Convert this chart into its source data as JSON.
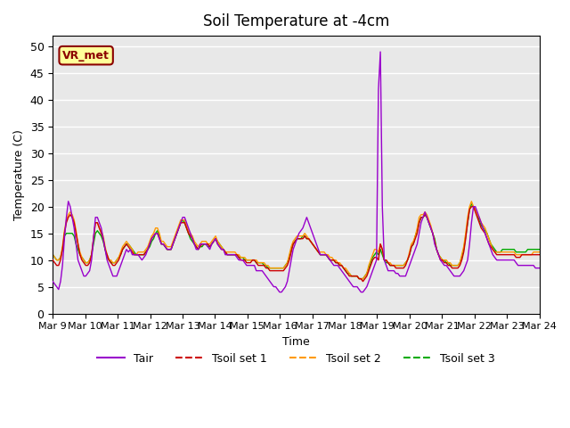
{
  "title": "Soil Temperature at -4cm",
  "xlabel": "Time",
  "ylabel": "Temperature (C)",
  "ylim": [
    0,
    52
  ],
  "xlim_days": [
    0,
    15
  ],
  "background_color": "#e8e8e8",
  "station_label": "VR_met",
  "legend_entries": [
    "Tair",
    "Tsoil set 1",
    "Tsoil set 2",
    "Tsoil set 3"
  ],
  "line_colors": [
    "#9900cc",
    "#cc0000",
    "#ff9900",
    "#00aa00"
  ],
  "xtick_labels": [
    "Mar 9",
    "Mar 10",
    "Mar 11",
    "Mar 12",
    "Mar 13",
    "Mar 14",
    "Mar 15",
    "Mar 16",
    "Mar 17",
    "Mar 18",
    "Mar 19",
    "Mar 20",
    "Mar 21",
    "Mar 22",
    "Mar 23",
    "Mar 24"
  ],
  "ytick_values": [
    0,
    5,
    10,
    15,
    20,
    25,
    30,
    35,
    40,
    45,
    50
  ]
}
